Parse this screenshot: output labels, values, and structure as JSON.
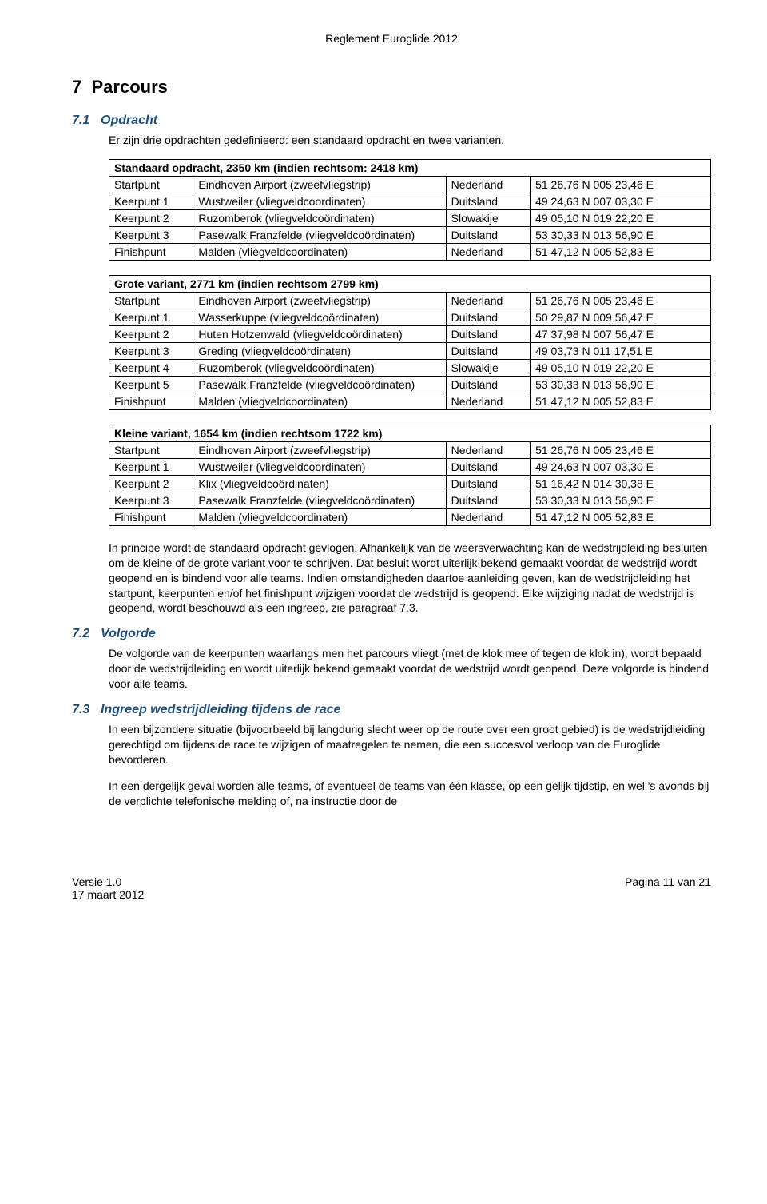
{
  "doc_header": "Reglement Euroglide 2012",
  "h1_num": "7",
  "h1_title": "Parcours",
  "s71_num": "7.1",
  "s71_title": "Opdracht",
  "s71_intro": "Er zijn drie opdrachten gedefinieerd: een standaard opdracht en twee varianten.",
  "t1": {
    "caption": "Standaard opdracht, 2350 km  (indien rechtsom: 2418 km)",
    "rows": [
      [
        "Startpunt",
        "Eindhoven Airport (zweefvliegstrip)",
        "Nederland",
        "51 26,76 N  005 23,46 E"
      ],
      [
        "Keerpunt 1",
        "Wustweiler (vliegveldcoordinaten)",
        "Duitsland",
        "49 24,63 N  007 03,30 E"
      ],
      [
        "Keerpunt 2",
        "Ruzomberok (vliegveldcoördinaten)",
        "Slowakije",
        "49 05,10 N  019 22,20 E"
      ],
      [
        "Keerpunt 3",
        "Pasewalk Franzfelde (vliegveldcoördinaten)",
        "Duitsland",
        "53 30,33 N  013 56,90 E"
      ],
      [
        "Finishpunt",
        "Malden (vliegveldcoordinaten)",
        "Nederland",
        "51 47,12 N  005 52,83 E"
      ]
    ]
  },
  "t2": {
    "caption": "Grote variant, 2771 km (indien rechtsom 2799 km)",
    "rows": [
      [
        "Startpunt",
        "Eindhoven Airport (zweefvliegstrip)",
        "Nederland",
        "51 26,76 N  005 23,46 E"
      ],
      [
        "Keerpunt 1",
        "Wasserkuppe (vliegveldcoördinaten)",
        "Duitsland",
        "50 29,87 N  009 56,47 E"
      ],
      [
        "Keerpunt 2",
        "Huten Hotzenwald (vliegveldcoördinaten)",
        "Duitsland",
        "47 37,98 N  007 56,47 E"
      ],
      [
        "Keerpunt 3",
        "Greding (vliegveldcoördinaten)",
        "Duitsland",
        "49 03,73 N  011 17,51 E"
      ],
      [
        "Keerpunt 4",
        "Ruzomberok (vliegveldcoördinaten)",
        "Slowakije",
        "49 05,10 N  019 22,20 E"
      ],
      [
        "Keerpunt 5",
        "Pasewalk Franzfelde (vliegveldcoördinaten)",
        "Duitsland",
        "53 30,33 N  013 56,90 E"
      ],
      [
        "Finishpunt",
        "Malden (vliegveldcoordinaten)",
        "Nederland",
        "51 47,12 N  005 52,83 E"
      ]
    ]
  },
  "t3": {
    "caption": "Kleine variant, 1654 km (indien rechtsom 1722 km)",
    "rows": [
      [
        "Startpunt",
        "Eindhoven Airport (zweefvliegstrip)",
        "Nederland",
        "51 26,76 N  005 23,46 E"
      ],
      [
        "Keerpunt 1",
        "Wustweiler (vliegveldcoordinaten)",
        "Duitsland",
        "49 24,63 N  007 03,30 E"
      ],
      [
        "Keerpunt 2",
        "Klix (vliegveldcoördinaten)",
        "Duitsland",
        "51 16,42 N  014 30,38 E"
      ],
      [
        "Keerpunt 3",
        "Pasewalk Franzfelde (vliegveldcoördinaten)",
        "Duitsland",
        "53 30,33 N  013 56,90 E"
      ],
      [
        "Finishpunt",
        "Malden (vliegveldcoordinaten)",
        "Nederland",
        "51 47,12 N  005 52,83 E"
      ]
    ]
  },
  "after_tables": "In principe wordt de standaard opdracht gevlogen. Afhankelijk van de weersverwachting kan de wedstrijdleiding besluiten om de kleine of de grote variant voor te schrijven. Dat besluit wordt uiterlijk bekend gemaakt voordat de wedstrijd wordt geopend en is bindend voor alle teams. Indien omstandigheden daartoe aanleiding geven, kan de wedstrijdleiding het startpunt, keerpunten en/of het finishpunt wijzigen voordat de wedstrijd is geopend. Elke wijziging nadat de wedstrijd is geopend, wordt beschouwd als een ingreep, zie paragraaf 7.3.",
  "s72_num": "7.2",
  "s72_title": "Volgorde",
  "s72_body": "De volgorde van de keerpunten waarlangs men het parcours vliegt (met de klok mee of tegen de klok in), wordt bepaald door de wedstrijdleiding en wordt uiterlijk bekend gemaakt voordat de wedstrijd wordt geopend. Deze volgorde is bindend voor alle teams.",
  "s73_num": "7.3",
  "s73_title": "Ingreep wedstrijdleiding tijdens de race",
  "s73_p1": "In een bijzondere situatie (bijvoorbeeld bij langdurig slecht weer op de route over een groot gebied) is de wedstrijdleiding gerechtigd om tijdens de race te wijzigen of maatregelen te nemen, die een succesvol verloop van de Euroglide bevorderen.",
  "s73_p2": "In een dergelijk geval worden alle teams, of eventueel de teams van één klasse, op een gelijk tijdstip, en wel 's avonds bij de verplichte telefonische melding of, na instructie door de",
  "footer_left1": "Versie 1.0",
  "footer_left2": "17 maart 2012",
  "footer_right": "Pagina 11 van 21"
}
